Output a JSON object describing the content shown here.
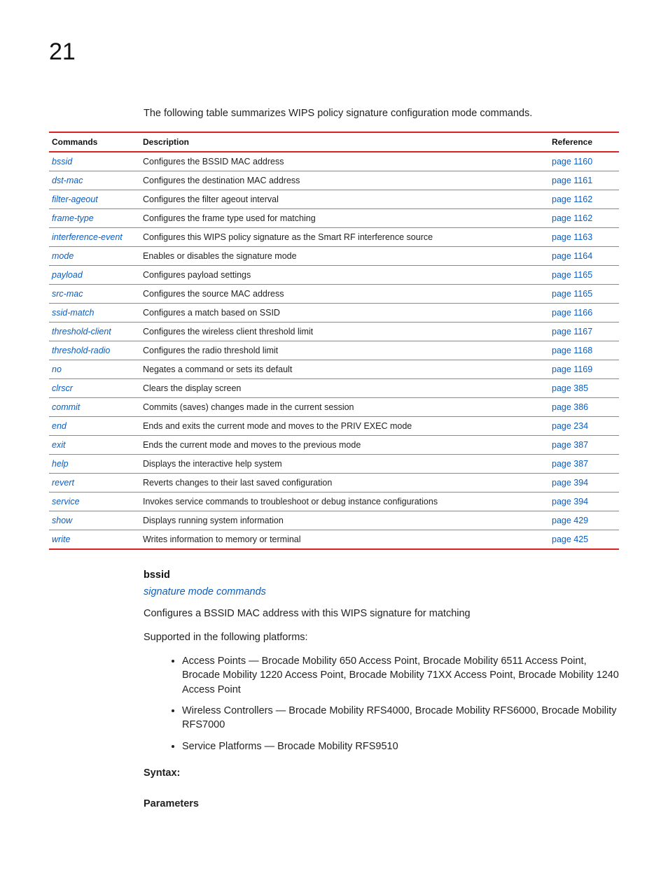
{
  "chapter": "21",
  "intro": "The following table summarizes WIPS policy signature configuration mode commands.",
  "table": {
    "headers": {
      "cmd": "Commands",
      "desc": "Description",
      "ref": "Reference"
    },
    "rows": [
      {
        "cmd": "bssid",
        "desc": "Configures the BSSID MAC address",
        "ref": "page 1160"
      },
      {
        "cmd": "dst-mac",
        "desc": "Configures the destination MAC address",
        "ref": "page 1161"
      },
      {
        "cmd": "filter-ageout",
        "desc": "Configures the filter ageout interval",
        "ref": "page 1162"
      },
      {
        "cmd": "frame-type",
        "desc": "Configures the frame type used for matching",
        "ref": "page 1162"
      },
      {
        "cmd": "interference-event",
        "desc": "Configures this WIPS policy signature as the Smart RF interference source",
        "ref": "page 1163"
      },
      {
        "cmd": "mode",
        "desc": "Enables or disables the signature mode",
        "ref": "page 1164"
      },
      {
        "cmd": "payload",
        "desc": "Configures payload settings",
        "ref": "page 1165"
      },
      {
        "cmd": "src-mac",
        "desc": "Configures the source MAC address",
        "ref": "page 1165"
      },
      {
        "cmd": "ssid-match",
        "desc": "Configures a match based on SSID",
        "ref": "page 1166"
      },
      {
        "cmd": "threshold-client",
        "desc": "Configures the wireless client threshold limit",
        "ref": "page 1167"
      },
      {
        "cmd": "threshold-radio",
        "desc": "Configures the radio threshold limit",
        "ref": "page 1168"
      },
      {
        "cmd": "no",
        "desc": "Negates a command or sets its default",
        "ref": "page 1169"
      },
      {
        "cmd": "clrscr",
        "desc": "Clears the display screen",
        "ref": "page 385"
      },
      {
        "cmd": "commit",
        "desc": "Commits (saves) changes made in the current session",
        "ref": "page 386"
      },
      {
        "cmd": "end",
        "desc": "Ends and exits the current mode and moves to the PRIV EXEC mode",
        "ref": "page 234"
      },
      {
        "cmd": "exit",
        "desc": "Ends the current mode and moves to the previous mode",
        "ref": "page 387"
      },
      {
        "cmd": "help",
        "desc": "Displays the interactive help system",
        "ref": "page 387"
      },
      {
        "cmd": "revert",
        "desc": "Reverts changes to their last saved configuration",
        "ref": "page 394"
      },
      {
        "cmd": "service",
        "desc": "Invokes service commands to troubleshoot or debug instance configurations",
        "ref": "page 394"
      },
      {
        "cmd": "show",
        "desc": "Displays running system information",
        "ref": "page 429"
      },
      {
        "cmd": "write",
        "desc": "Writes information to memory or terminal",
        "ref": "page 425"
      }
    ]
  },
  "section": {
    "heading": "bssid",
    "sublink": "signature mode commands",
    "desc": "Configures a BSSID MAC address with this WIPS signature for matching",
    "supported_label": "Supported in the following platforms:",
    "platforms": [
      "Access Points — Brocade Mobility 650 Access Point, Brocade Mobility 6511 Access Point, Brocade Mobility 1220 Access Point, Brocade Mobility 71XX Access Point, Brocade Mobility 1240 Access Point",
      "Wireless Controllers — Brocade Mobility RFS4000, Brocade Mobility RFS6000, Brocade Mobility RFS7000",
      "Service Platforms — Brocade Mobility RFS9510"
    ],
    "syntax_label": "Syntax:",
    "params_label": "Parameters"
  }
}
